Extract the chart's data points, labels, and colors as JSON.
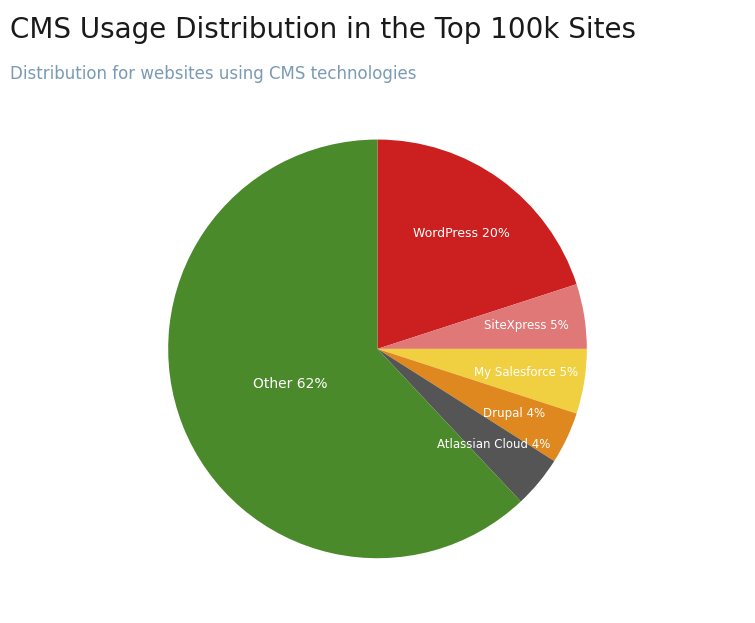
{
  "title": "CMS Usage Distribution in the Top 100k Sites",
  "subtitle": "Distribution for websites using CMS technologies",
  "title_color": "#1a1a1a",
  "subtitle_color": "#7a9ab5",
  "labels": [
    "WordPress 20%",
    "SiteXpress 5%",
    "My Salesforce 5%",
    "Drupal 4%",
    "Atlassian Cloud 4%",
    "Other 62%"
  ],
  "values": [
    20,
    5,
    5,
    4,
    4,
    62
  ],
  "colors": [
    "#cc2020",
    "#e07878",
    "#f0d040",
    "#e08820",
    "#555555",
    "#4a8a2a"
  ],
  "label_color": "#ffffff",
  "background_color": "#ffffff",
  "startangle": 90,
  "figsize": [
    7.55,
    6.23
  ],
  "label_radii": [
    0.68,
    0.72,
    0.72,
    0.72,
    0.72,
    0.45
  ],
  "label_fontsizes": [
    9,
    8.5,
    8.5,
    8.5,
    8.5,
    10
  ]
}
